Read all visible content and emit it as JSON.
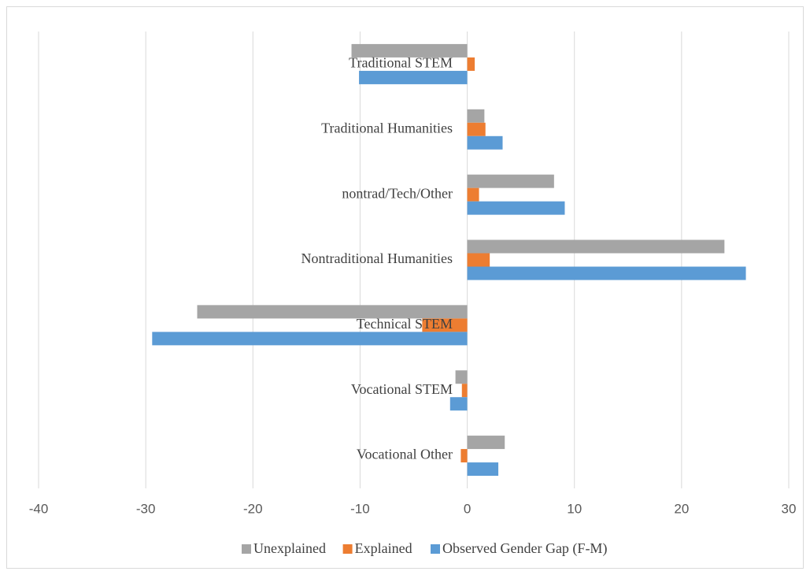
{
  "chart_data": {
    "type": "bar",
    "orientation": "horizontal",
    "categories": [
      "Traditional STEM",
      "Traditional Humanities",
      "nontrad/Tech/Other",
      "Nontraditional Humanities",
      "Technical STEM",
      "Vocational STEM",
      "Vocational Other"
    ],
    "series": [
      {
        "name": "Unexplained",
        "color": "#a5a5a5",
        "values": [
          -10.8,
          1.6,
          8.1,
          24.0,
          -25.2,
          -1.1,
          3.5
        ]
      },
      {
        "name": "Explained",
        "color": "#ed7d31",
        "values": [
          0.7,
          1.7,
          1.1,
          2.1,
          -4.2,
          -0.5,
          -0.6
        ]
      },
      {
        "name": "Observed Gender Gap (F-M)",
        "color": "#5b9bd5",
        "values": [
          -10.1,
          3.3,
          9.1,
          26.0,
          -29.4,
          -1.6,
          2.9
        ]
      }
    ],
    "xlim": [
      -40,
      30
    ],
    "xticks": [
      -40,
      -30,
      -20,
      -10,
      0,
      10,
      20,
      30
    ],
    "grid": true,
    "legend": "bottom"
  }
}
